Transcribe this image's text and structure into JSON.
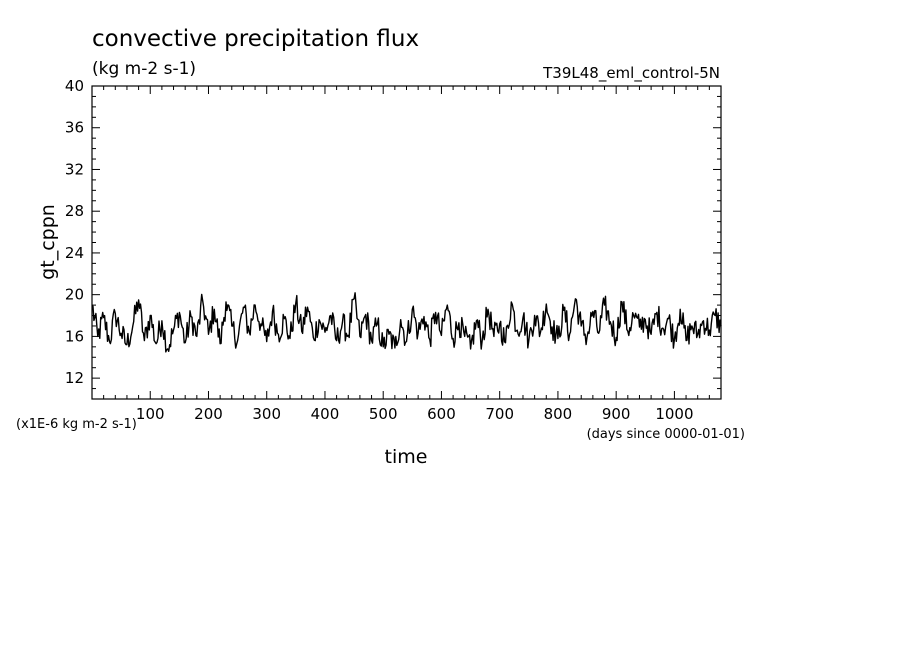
{
  "chart_data": {
    "type": "line",
    "title": "convective precipitation flux",
    "subtitle": "(kg m-2 s-1)",
    "run_label": "T39L48_eml_control-5N",
    "xlabel": "time",
    "x_units": "(days since 0000-01-01)",
    "ylabel": "gt_cppn",
    "y_units": "(x1E-6 kg m-2 s-1)",
    "xlim": [
      0,
      1080
    ],
    "ylim": [
      10,
      40
    ],
    "x_ticks": [
      100,
      200,
      300,
      400,
      500,
      600,
      700,
      800,
      900,
      1000
    ],
    "x_tick_labels": [
      "100",
      "200",
      "300",
      "400",
      "500",
      "600",
      "700",
      "800",
      "900",
      "1000"
    ],
    "y_ticks": [
      12,
      16,
      20,
      24,
      28,
      32,
      36,
      40
    ],
    "y_tick_labels": [
      "12",
      "16",
      "20",
      "24",
      "28",
      "32",
      "36",
      "40"
    ],
    "grid": false,
    "series": [
      {
        "x": [
          0,
          10,
          20,
          30,
          40,
          50,
          60,
          70,
          80,
          90,
          100,
          110,
          120,
          130,
          140,
          150,
          160,
          170,
          180,
          190,
          200,
          210,
          220,
          230,
          240,
          250,
          260,
          270,
          280,
          290,
          300,
          310,
          320,
          330,
          340,
          350,
          360,
          370,
          380,
          390,
          400,
          410,
          420,
          430,
          440,
          450,
          460,
          470,
          480,
          490,
          500,
          510,
          520,
          530,
          540,
          550,
          560,
          570,
          580,
          590,
          600,
          610,
          620,
          630,
          640,
          650,
          660,
          670,
          680,
          690,
          700,
          710,
          720,
          730,
          740,
          750,
          760,
          770,
          780,
          790,
          800,
          810,
          820,
          830,
          840,
          850,
          860,
          870,
          880,
          890,
          900,
          910,
          920,
          930,
          940,
          950,
          960,
          970,
          980,
          990,
          1000,
          1010,
          1020,
          1030,
          1040,
          1050,
          1060,
          1070,
          1080
        ],
        "values": [
          19.0,
          16.0,
          17.8,
          15.5,
          18.2,
          16.3,
          15.2,
          17.0,
          19.5,
          15.6,
          18.0,
          15.3,
          17.5,
          14.8,
          16.6,
          18.3,
          15.4,
          17.9,
          16.0,
          19.4,
          16.2,
          18.6,
          15.3,
          19.3,
          17.0,
          15.6,
          18.8,
          16.4,
          19.0,
          17.2,
          15.5,
          18.4,
          16.2,
          17.7,
          15.8,
          19.2,
          16.5,
          18.8,
          15.9,
          17.6,
          16.4,
          18.0,
          15.6,
          17.3,
          16.1,
          19.6,
          16.0,
          18.1,
          15.6,
          17.2,
          15.0,
          16.2,
          14.9,
          17.6,
          15.5,
          18.6,
          16.3,
          17.9,
          15.7,
          18.3,
          16.1,
          19.0,
          15.8,
          17.3,
          16.0,
          14.8,
          17.5,
          15.6,
          18.6,
          16.0,
          17.2,
          15.4,
          19.3,
          16.6,
          17.8,
          15.6,
          18.0,
          16.4,
          19.1,
          16.9,
          15.8,
          18.5,
          16.2,
          19.6,
          17.0,
          15.9,
          18.4,
          16.3,
          19.0,
          17.4,
          15.9,
          19.3,
          16.5,
          18.0,
          16.9,
          17.6,
          16.2,
          18.3,
          16.8,
          17.7,
          15.7,
          18.6,
          15.6,
          17.0,
          16.2,
          17.5,
          16.6,
          18.0,
          17.0
        ]
      }
    ]
  }
}
